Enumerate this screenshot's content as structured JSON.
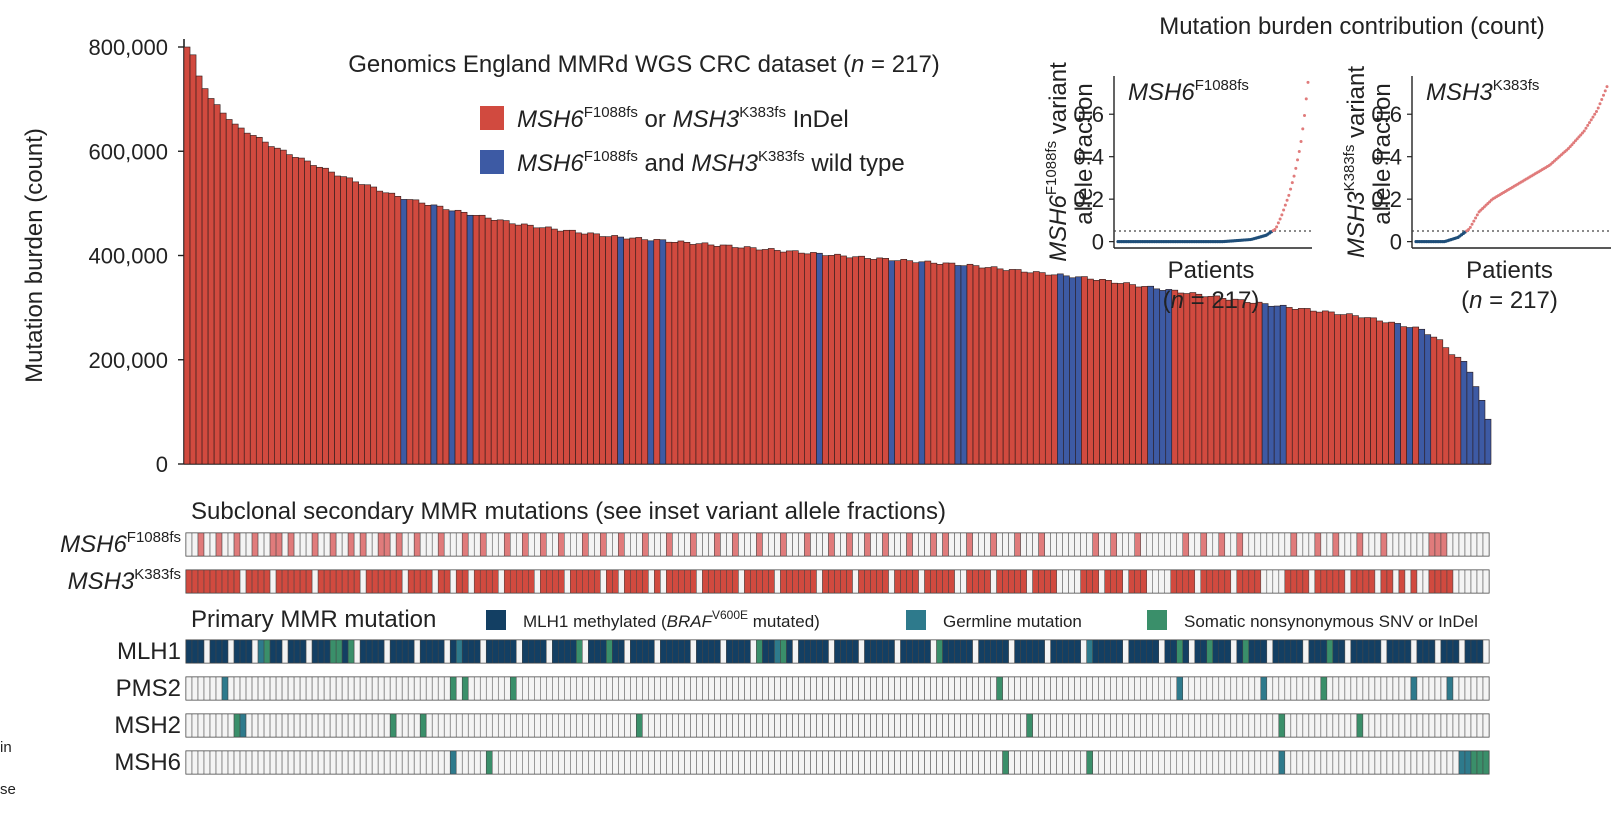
{
  "chart_data": {
    "type": "bar",
    "title": "Genomics England MMRd WGS CRC dataset (n = 217)",
    "title_parts": [
      "Genomics England MMRd WGS CRC dataset (",
      "n",
      " = 217)"
    ],
    "ylabel": "Mutation burden (count)",
    "ylim": [
      0,
      800000
    ],
    "yticks": [
      {
        "value": 0,
        "label": "0"
      },
      {
        "value": 200000,
        "label": "200,000"
      },
      {
        "value": 400000,
        "label": "400,000"
      },
      {
        "value": 600000,
        "label": "600,000"
      },
      {
        "value": 800000,
        "label": "800,000"
      }
    ],
    "n_patients": 217,
    "value_anchors": [
      [
        0,
        800000
      ],
      [
        1,
        785000
      ],
      [
        2,
        745000
      ],
      [
        4,
        700000
      ],
      [
        8,
        650000
      ],
      [
        15,
        605000
      ],
      [
        25,
        555000
      ],
      [
        35,
        513000
      ],
      [
        44,
        487000
      ],
      [
        55,
        460000
      ],
      [
        70,
        437000
      ],
      [
        90,
        418000
      ],
      [
        110,
        398000
      ],
      [
        130,
        381000
      ],
      [
        150,
        356000
      ],
      [
        165,
        330000
      ],
      [
        180,
        305000
      ],
      [
        195,
        283000
      ],
      [
        205,
        258000
      ],
      [
        208,
        236000
      ],
      [
        210,
        212000
      ],
      [
        212,
        195000
      ],
      [
        213,
        178000
      ],
      [
        214,
        150000
      ],
      [
        215,
        120000
      ],
      [
        216,
        85000
      ]
    ],
    "wild_type_patients": [
      36,
      41,
      44,
      47,
      72,
      77,
      79,
      105,
      117,
      122,
      128,
      129,
      145,
      146,
      147,
      148,
      160,
      161,
      162,
      163,
      179,
      180,
      181,
      182,
      201,
      203,
      205,
      206,
      212,
      213,
      214,
      215,
      216
    ],
    "series": [
      {
        "name": "MSH6 F1088fs or MSH3 K383fs InDel",
        "color": "#d14a3f"
      },
      {
        "name": "MSH6 F1088fs and MSH3 K383fs wild type",
        "color": "#3d5aa4"
      }
    ],
    "legend": [
      {
        "gene1": "MSH6",
        "sup1": "F1088fs",
        "mid": " or ",
        "gene2": "MSH3",
        "sup2": "K383fs",
        "tail": " InDel",
        "color": "#d14a3f"
      },
      {
        "gene1": "MSH6",
        "sup1": "F1088fs",
        "mid": " and ",
        "gene2": "MSH3",
        "sup2": "K383fs",
        "tail": " wild type",
        "color": "#3d5aa4"
      }
    ],
    "subclonal_title": "Subclonal secondary MMR mutations (see inset variant allele fractions)",
    "subclonal_tracks": [
      {
        "gene": "MSH6",
        "sup": "F1088fs",
        "color": "#e07b7b",
        "mutated": [
          2,
          5,
          8,
          11,
          14,
          15,
          17,
          21,
          24,
          27,
          29,
          32,
          33,
          35,
          38,
          42,
          46,
          49,
          53,
          56,
          59,
          62,
          66,
          69,
          72,
          76,
          80,
          84,
          88,
          91,
          95,
          99,
          103,
          107,
          110,
          113,
          116,
          120,
          124,
          126,
          130,
          134,
          138,
          142,
          151,
          154,
          158,
          166,
          169,
          172,
          175,
          184,
          188,
          191,
          195,
          199,
          207,
          208,
          209
        ]
      },
      {
        "gene": "MSH3",
        "sup": "K383fs",
        "color": "#d14a3f",
        "wild": [
          9,
          14,
          21,
          29,
          36,
          41,
          44,
          47,
          52,
          58,
          63,
          69,
          72,
          77,
          79,
          85,
          92,
          98,
          105,
          111,
          117,
          122,
          128,
          129,
          134,
          140,
          145,
          146,
          147,
          148,
          152,
          156,
          160,
          161,
          162,
          163,
          168,
          174,
          179,
          180,
          181,
          182,
          187,
          193,
          198,
          201,
          203,
          205,
          206,
          211,
          212,
          213,
          214,
          215,
          216
        ]
      }
    ],
    "primary_title": "Primary MMR mutation",
    "primary_legend": [
      {
        "label_pre": "MLH1 methylated (",
        "gene": "BRAF",
        "sup": "V600E",
        "label_post": " mutated)",
        "color": "#133f63"
      },
      {
        "label_pre": "Germline mutation",
        "gene": "",
        "sup": "",
        "label_post": "",
        "color": "#2e7a8c"
      },
      {
        "label_pre": "Somatic nonsynonymous SNV or InDel",
        "gene": "",
        "sup": "",
        "label_post": "",
        "color": "#3a8f6a"
      }
    ],
    "primary_tracks": [
      {
        "gene": "MLH1",
        "germline": [
          12,
          45,
          98,
          150
        ],
        "somatic": [
          13,
          24,
          25,
          27,
          65,
          70,
          95,
          99,
          125,
          165,
          170,
          176,
          190
        ],
        "methylated_wild": [
          3,
          7,
          11,
          16,
          20,
          28,
          33,
          38,
          43,
          49,
          55,
          60,
          66,
          73,
          78,
          84,
          89,
          94,
          101,
          107,
          112,
          118,
          124,
          131,
          137,
          143,
          149,
          156,
          162,
          167,
          174,
          180,
          186,
          193,
          199,
          204,
          208,
          212,
          216
        ]
      },
      {
        "gene": "PMS2",
        "germline": [
          6,
          165,
          179,
          204,
          210
        ],
        "somatic": [
          44,
          46,
          54,
          135,
          189
        ]
      },
      {
        "gene": "MSH2",
        "germline": [
          9
        ],
        "somatic": [
          8,
          34,
          39,
          75,
          140,
          182,
          195
        ]
      },
      {
        "gene": "MSH6",
        "germline": [
          44,
          182,
          212,
          213
        ],
        "somatic": [
          50,
          136,
          150,
          214,
          215,
          216
        ]
      }
    ],
    "insets": [
      {
        "gene": "MSH6",
        "sup": "F1088fs",
        "ylabel_tail": " variant",
        "ylabel2": "allele fraction",
        "yticks": [
          "0",
          "0.2",
          "0.4",
          "0.6"
        ],
        "ylim": [
          -0.03,
          0.78
        ],
        "threshold": 0.05,
        "xlabel": "Patients",
        "xlabel2_parts": [
          "(",
          "n",
          " = 217)"
        ],
        "curve": [
          [
            0,
            0
          ],
          [
            0.55,
            0.0
          ],
          [
            0.7,
            0.01
          ],
          [
            0.78,
            0.03
          ],
          [
            0.83,
            0.06
          ],
          [
            0.86,
            0.12
          ],
          [
            0.9,
            0.22
          ],
          [
            0.93,
            0.32
          ],
          [
            0.96,
            0.45
          ],
          [
            0.98,
            0.58
          ],
          [
            1.0,
            0.75
          ]
        ]
      },
      {
        "gene": "MSH3",
        "sup": "K383fs",
        "ylabel_tail": " variant",
        "ylabel2": "allele fraction",
        "yticks": [
          "0",
          "0.2",
          "0.4",
          "0.6"
        ],
        "ylim": [
          -0.03,
          0.78
        ],
        "threshold": 0.05,
        "xlabel": "Patients",
        "xlabel2_parts": [
          "(",
          "n",
          " = 217)"
        ],
        "curve": [
          [
            0,
            0
          ],
          [
            0.15,
            0.0
          ],
          [
            0.22,
            0.02
          ],
          [
            0.28,
            0.06
          ],
          [
            0.33,
            0.14
          ],
          [
            0.4,
            0.2
          ],
          [
            0.55,
            0.28
          ],
          [
            0.7,
            0.36
          ],
          [
            0.8,
            0.44
          ],
          [
            0.88,
            0.52
          ],
          [
            0.95,
            0.62
          ],
          [
            1.0,
            0.73
          ]
        ]
      }
    ],
    "inset_header": "Mutation burden contribution (count)",
    "margin_fragments": [
      "in",
      "se"
    ]
  }
}
